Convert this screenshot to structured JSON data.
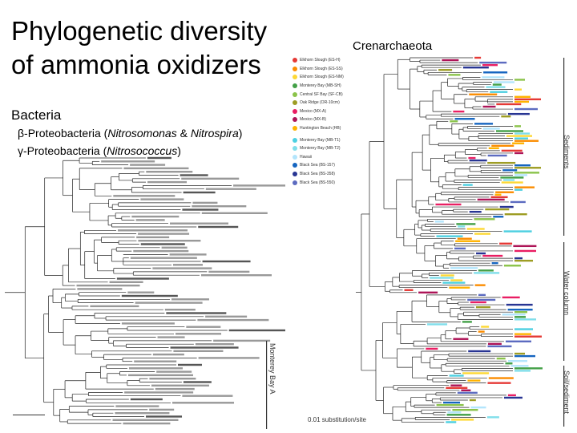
{
  "slide": {
    "title_line1": "Phylogenetic diversity",
    "title_line2": "of ammonia oxidizers",
    "bacteria_heading": "Bacteria",
    "beta_prefix": "β-Proteobacteria (",
    "beta_italic1": "Nitrosomonas",
    "beta_mid": " & ",
    "beta_italic2": "Nitrospira",
    "beta_suffix": ")",
    "gamma_prefix": "γ-Proteobacteria (",
    "gamma_italic": "Nitrosococcus",
    "gamma_suffix": ")",
    "crenarchaeota_heading": "Crenarchaeota",
    "scale_label": "0.01 substitution/site",
    "side_labels": {
      "sediments": "Sediments",
      "water_column": "Water column",
      "soil_sediment": "Soil/sediment",
      "monterey": "Monterey Bay A"
    }
  },
  "legend": [
    {
      "label": "Elkhorn Slough (ES-H)",
      "color": "#e53935"
    },
    {
      "label": "Elkhorn Slough (ES-SS)",
      "color": "#fb8c00"
    },
    {
      "label": "Elkhorn Slough (ES-NM)",
      "color": "#fdd835"
    },
    {
      "label": "Monterey Bay (MB-SH)",
      "color": "#43a047"
    },
    {
      "label": "Central SF Bay (SF-CB)",
      "color": "#8bc34a"
    },
    {
      "label": "Oak Ridge (OR-10cm)",
      "color": "#9e9d24"
    },
    {
      "label": "Mexico (MX-A)",
      "color": "#e91e63"
    },
    {
      "label": "Mexico (MX-B)",
      "color": "#ad1457"
    },
    {
      "label": "Huntington Beach (HB)",
      "color": "#ffb300"
    },
    {
      "label": "Monterey Bay (MB-T1)",
      "color": "#4dd0e1"
    },
    {
      "label": "Monterey Bay (MB-T2)",
      "color": "#80deea"
    },
    {
      "label": "Hawaii",
      "color": "#b3e5fc"
    },
    {
      "label": "Black Sea (BS-157)",
      "color": "#1565c0"
    },
    {
      "label": "Black Sea (BS-358)",
      "color": "#283593"
    },
    {
      "label": "Black Sea (BS-550)",
      "color": "#5c6bc0"
    }
  ]
}
